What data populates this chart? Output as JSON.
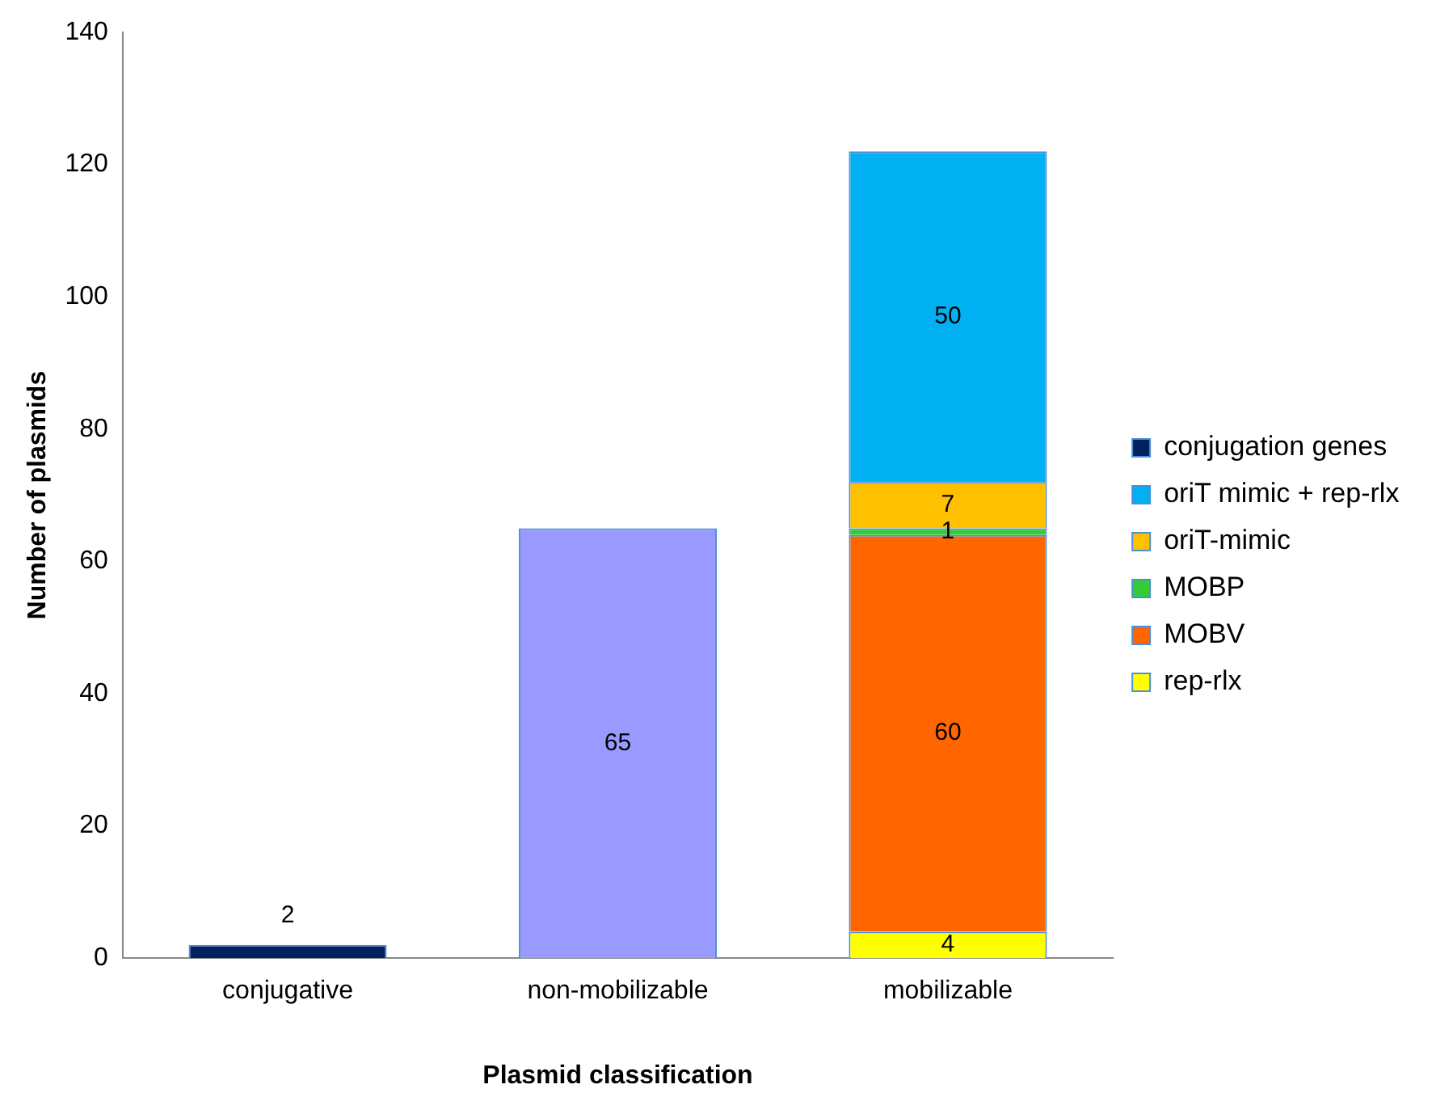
{
  "chart_data": {
    "type": "bar",
    "stacked": true,
    "xlabel": "Plasmid classification",
    "ylabel": "Number of plasmids",
    "categories": [
      "conjugative",
      "non-mobilizable",
      "mobilizable"
    ],
    "series": [
      {
        "name": "rep-rlx",
        "color": "#ffff00",
        "values": [
          null,
          null,
          4
        ]
      },
      {
        "name": "MOBV",
        "color": "#ff6600",
        "values": [
          null,
          null,
          60
        ]
      },
      {
        "name": "MOBP",
        "color": "#33cc33",
        "values": [
          null,
          null,
          1
        ]
      },
      {
        "name": "oriT-mimic",
        "color": "#ffc000",
        "values": [
          null,
          null,
          7
        ]
      },
      {
        "name": "oriT mimic + rep-rlx",
        "color": "#00b0f0",
        "values": [
          null,
          null,
          50
        ]
      },
      {
        "name": "conjugation genes",
        "color": "#002060",
        "values": [
          2,
          null,
          null
        ]
      },
      {
        "color": "#9999ff",
        "values": [
          null,
          65,
          null
        ]
      }
    ],
    "ylim": [
      0,
      140
    ],
    "yticks": [
      0,
      20,
      40,
      60,
      80,
      100,
      120,
      140
    ],
    "grid": false,
    "legend": "right",
    "data_labels": true
  }
}
